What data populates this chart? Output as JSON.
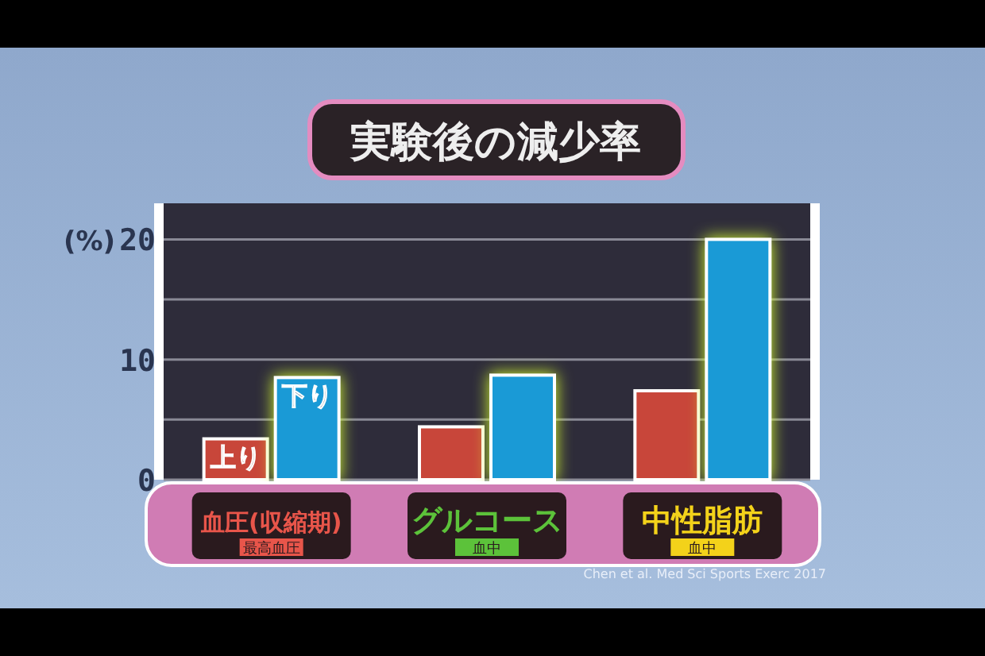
{
  "chart_data": {
    "type": "bar",
    "title": "実験後の減少率",
    "ylabel": "(%)",
    "categories": [
      "血圧(収縮期)",
      "グルコース",
      "中性脂肪"
    ],
    "series": [
      {
        "name": "上り",
        "color": "#c8463a",
        "values": [
          3.4,
          4.4,
          7.4
        ]
      },
      {
        "name": "下り",
        "color": "#1a9ad6",
        "values": [
          8.5,
          8.7,
          20
        ]
      }
    ],
    "ylim": [
      0,
      23
    ],
    "yticks": [
      0,
      {
        "value": 5,
        "label": null
      },
      10,
      {
        "value": 15,
        "label": null
      },
      20
    ],
    "grid": "y",
    "annotations": [
      "最高血圧",
      "血中",
      "血中",
      "Chen et al. Med Sci Sports Exerc 2017"
    ]
  }
}
